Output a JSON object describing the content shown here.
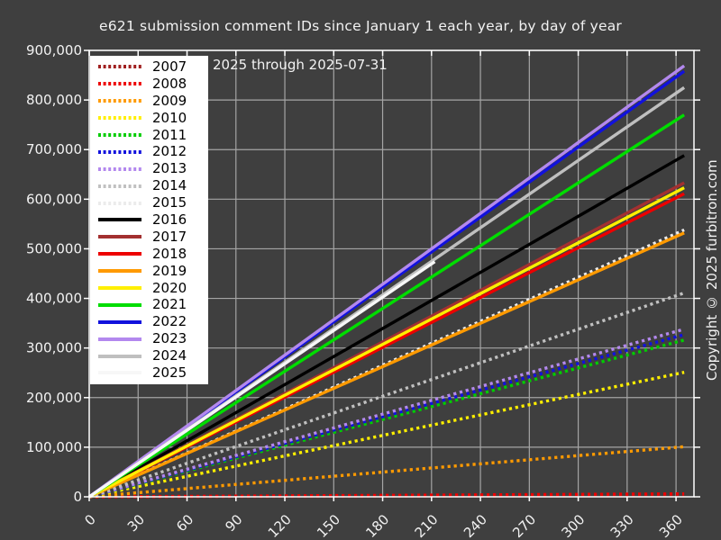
{
  "title": "e621 submission comment IDs since January 1 each year, by day of year",
  "subtitle": "2025 through 2025-07-31",
  "copyright": "Copyright © 2025 furbitron.com",
  "colors": {
    "background": "#3f3f3f",
    "grid": "#a5a5a5",
    "axis_border": "#ffffff",
    "tick_label": "#f2f2f2",
    "legend_background": "#ffffff",
    "legend_text": "#000000"
  },
  "chart_data": {
    "type": "line",
    "title": "e621 submission comment IDs since January 1 each year, by day of year",
    "subtitle": "2025 through 2025-07-31",
    "xlabel": "",
    "ylabel": "",
    "xlim": [
      0,
      371
    ],
    "ylim": [
      0,
      900000
    ],
    "x_ticks": [
      0,
      30,
      60,
      90,
      120,
      150,
      180,
      210,
      240,
      270,
      300,
      330,
      360
    ],
    "y_ticks": [
      0,
      100000,
      200000,
      300000,
      400000,
      500000,
      600000,
      700000,
      800000,
      900000
    ],
    "grid": true,
    "legend_position": "upper-left",
    "series": [
      {
        "name": "2007",
        "color": "#a02020",
        "style": "dotted",
        "x": [
          0,
          365
        ],
        "y": [
          0,
          2000
        ]
      },
      {
        "name": "2008",
        "color": "#ed0000",
        "style": "dotted",
        "x": [
          0,
          365
        ],
        "y": [
          0,
          6000
        ]
      },
      {
        "name": "2009",
        "color": "#ff9a00",
        "style": "dotted",
        "x": [
          0,
          365
        ],
        "y": [
          0,
          101000
        ]
      },
      {
        "name": "2010",
        "color": "#ffef00",
        "style": "dotted",
        "x": [
          0,
          365
        ],
        "y": [
          0,
          251000
        ]
      },
      {
        "name": "2011",
        "color": "#00cc00",
        "style": "dotted",
        "x": [
          0,
          365
        ],
        "y": [
          0,
          316000
        ]
      },
      {
        "name": "2012",
        "color": "#1111dd",
        "style": "dotted",
        "x": [
          0,
          365
        ],
        "y": [
          0,
          327000
        ]
      },
      {
        "name": "2013",
        "color": "#b388ee",
        "style": "dotted",
        "x": [
          0,
          365
        ],
        "y": [
          0,
          338000
        ]
      },
      {
        "name": "2014",
        "color": "#c0c0c0",
        "style": "dotted",
        "x": [
          0,
          365
        ],
        "y": [
          0,
          411000
        ]
      },
      {
        "name": "2015",
        "color": "#ebebeb",
        "style": "dotted",
        "x": [
          0,
          365
        ],
        "y": [
          0,
          538000
        ]
      },
      {
        "name": "2016",
        "color": "#000000",
        "style": "solid",
        "x": [
          0,
          365
        ],
        "y": [
          0,
          688000
        ]
      },
      {
        "name": "2017",
        "color": "#a33030",
        "style": "solid",
        "x": [
          0,
          365
        ],
        "y": [
          0,
          633000
        ]
      },
      {
        "name": "2018",
        "color": "#ed0000",
        "style": "solid",
        "x": [
          0,
          365
        ],
        "y": [
          0,
          611000
        ]
      },
      {
        "name": "2019",
        "color": "#ff9a00",
        "style": "solid",
        "x": [
          0,
          365
        ],
        "y": [
          0,
          532000
        ]
      },
      {
        "name": "2020",
        "color": "#ffef00",
        "style": "solid",
        "x": [
          0,
          365
        ],
        "y": [
          0,
          623000
        ]
      },
      {
        "name": "2021",
        "color": "#00dd00",
        "style": "solid",
        "x": [
          0,
          365
        ],
        "y": [
          0,
          770000
        ]
      },
      {
        "name": "2022",
        "color": "#1111dd",
        "style": "solid",
        "x": [
          0,
          365
        ],
        "y": [
          0,
          858000
        ]
      },
      {
        "name": "2023",
        "color": "#b388ee",
        "style": "solid",
        "x": [
          0,
          365
        ],
        "y": [
          0,
          869000
        ]
      },
      {
        "name": "2024",
        "color": "#bfbfbf",
        "style": "solid",
        "x": [
          0,
          365
        ],
        "y": [
          0,
          825000
        ]
      },
      {
        "name": "2025",
        "color": "#f7f7f7",
        "style": "solid",
        "x": [
          0,
          212
        ],
        "y": [
          0,
          474000
        ]
      }
    ]
  }
}
